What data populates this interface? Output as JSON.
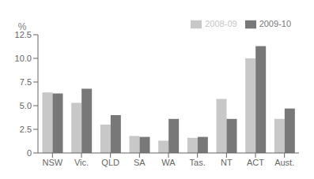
{
  "chart_data": {
    "type": "bar",
    "ylabel": "%",
    "categories": [
      "NSW",
      "Vic.",
      "QLD",
      "SA",
      "WA",
      "Tas.",
      "NT",
      "ACT",
      "Aust."
    ],
    "series": [
      {
        "name": "2008-09",
        "color": "#c8c8c8",
        "values": [
          6.4,
          5.3,
          3.0,
          1.8,
          1.3,
          1.6,
          5.7,
          10.0,
          3.6
        ]
      },
      {
        "name": "2009-10",
        "color": "#787878",
        "values": [
          6.3,
          6.8,
          4.0,
          1.7,
          3.6,
          1.7,
          3.6,
          11.3,
          4.7
        ]
      }
    ],
    "ylim": [
      0,
      12.5
    ],
    "yticks": [
      0,
      2.5,
      {
        "value": 5.0,
        "label": "5.0"
      },
      {
        "value": 7.5,
        "label": "7.5"
      },
      {
        "value": 10.0,
        "label": "10.0"
      },
      {
        "value": 12.5,
        "label": "12.5"
      }
    ],
    "grid": false,
    "legend": "upper right"
  }
}
